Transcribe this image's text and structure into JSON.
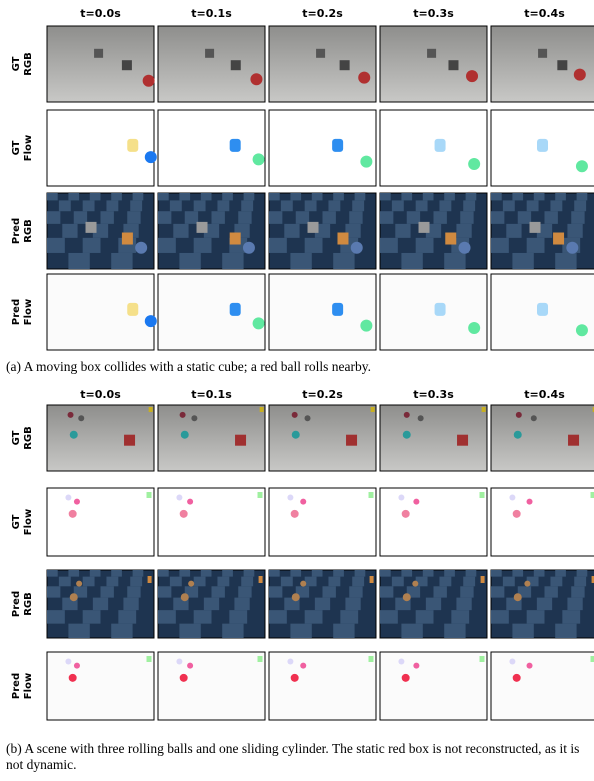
{
  "panels": [
    {
      "columns": [
        "t=0.0s",
        "t=0.1s",
        "t=0.2s",
        "t=0.3s",
        "t=0.4s"
      ],
      "rows": [
        {
          "label": [
            "GT",
            "RGB"
          ]
        },
        {
          "label": [
            "GT",
            "Flow"
          ]
        },
        {
          "label": [
            "Pred",
            "RGB"
          ]
        },
        {
          "label": [
            "Pred",
            "Flow"
          ]
        }
      ],
      "caption": "(a) A moving box collides with a static cube; a red ball rolls nearby."
    },
    {
      "columns": [
        "t=0.0s",
        "t=0.1s",
        "t=0.2s",
        "t=0.3s",
        "t=0.4s"
      ],
      "rows": [
        {
          "label": [
            "GT",
            "RGB"
          ]
        },
        {
          "label": [
            "GT",
            "Flow"
          ]
        },
        {
          "label": [
            "Pred",
            "RGB"
          ]
        },
        {
          "label": [
            "Pred",
            "Flow"
          ]
        }
      ],
      "caption": "(b) A scene with three rolling balls and one sliding cylinder. The static red box is not reconstructed, as it is not dynamic."
    }
  ]
}
